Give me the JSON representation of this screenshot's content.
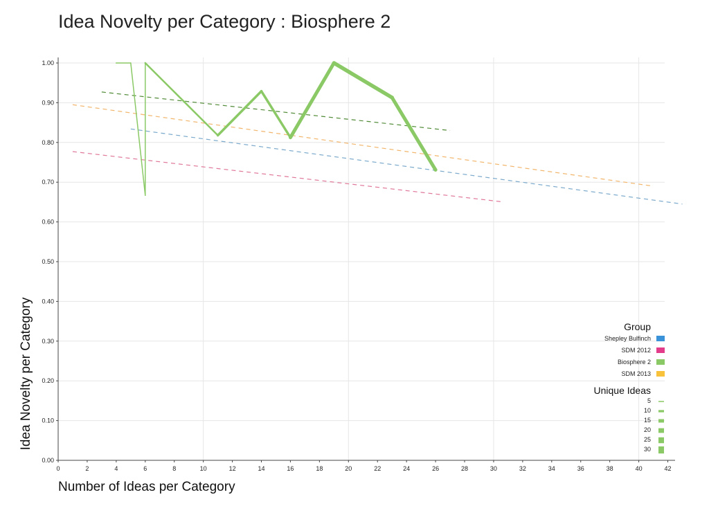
{
  "title": "Idea Novelty per Category : Biosphere 2",
  "chart_data": {
    "type": "line",
    "title": "Idea Novelty per Category : Biosphere 2",
    "xlabel": "Number of Ideas per Category",
    "ylabel": "Idea Novelty per Category",
    "xlim": [
      0,
      42.5
    ],
    "ylim": [
      0,
      1.0
    ],
    "x_ticks": [
      "0",
      "2",
      "4",
      "6",
      "8",
      "10",
      "12",
      "14",
      "16",
      "18",
      "20",
      "22",
      "24",
      "26",
      "28",
      "30",
      "32",
      "34",
      "36",
      "38",
      "40",
      "42"
    ],
    "y_ticks": [
      "0.00",
      "0.10",
      "0.20",
      "0.30",
      "0.40",
      "0.50",
      "0.60",
      "0.70",
      "0.80",
      "0.90",
      "1.00"
    ],
    "grid": true,
    "series": [
      {
        "name": "Biosphere 2",
        "color": "#8ac965",
        "points": [
          {
            "x": 4,
            "y": 1.0,
            "unique_ideas": 5
          },
          {
            "x": 5,
            "y": 1.0,
            "unique_ideas": 5
          },
          {
            "x": 6,
            "y": 0.667,
            "unique_ideas": 5
          },
          {
            "x": 6,
            "y": 1.0,
            "unique_ideas": 5
          },
          {
            "x": 11,
            "y": 0.818,
            "unique_ideas": 9
          },
          {
            "x": 14,
            "y": 0.929,
            "unique_ideas": 13
          },
          {
            "x": 16,
            "y": 0.8125,
            "unique_ideas": 13
          },
          {
            "x": 19,
            "y": 1.0,
            "unique_ideas": 19
          },
          {
            "x": 23,
            "y": 0.913,
            "unique_ideas": 21
          },
          {
            "x": 26,
            "y": 0.731,
            "unique_ideas": 19
          }
        ]
      }
    ],
    "trend_lines": [
      {
        "group": "Biosphere 2",
        "color": "#4f8a35",
        "x": [
          3,
          27
        ],
        "y": [
          0.927,
          0.83
        ]
      },
      {
        "group": "SDM 2013",
        "color": "#f2b56b",
        "x": [
          1,
          41
        ],
        "y": [
          0.895,
          0.69
        ]
      },
      {
        "group": "Shepley Bulfinch",
        "color": "#7aa9cc",
        "x": [
          5,
          43
        ],
        "y": [
          0.834,
          0.645
        ]
      },
      {
        "group": "SDM 2012",
        "color": "#e07898",
        "x": [
          1,
          30.5
        ],
        "y": [
          0.777,
          0.651
        ]
      }
    ],
    "legend": {
      "placement": "bottom-right",
      "group_title": "Group",
      "groups": [
        {
          "name": "Shepley Bulfinch",
          "color": "#3a93d8"
        },
        {
          "name": "SDM 2012",
          "color": "#e23c8a"
        },
        {
          "name": "Biosphere 2",
          "color": "#8ac965"
        },
        {
          "name": "SDM 2013",
          "color": "#f8c23a"
        }
      ],
      "size_title": "Unique Ideas",
      "sizes": [
        {
          "label": "5",
          "value": 5
        },
        {
          "label": "10",
          "value": 10
        },
        {
          "label": "15",
          "value": 15
        },
        {
          "label": "20",
          "value": 20
        },
        {
          "label": "25",
          "value": 25
        },
        {
          "label": "30",
          "value": 30
        }
      ]
    }
  }
}
